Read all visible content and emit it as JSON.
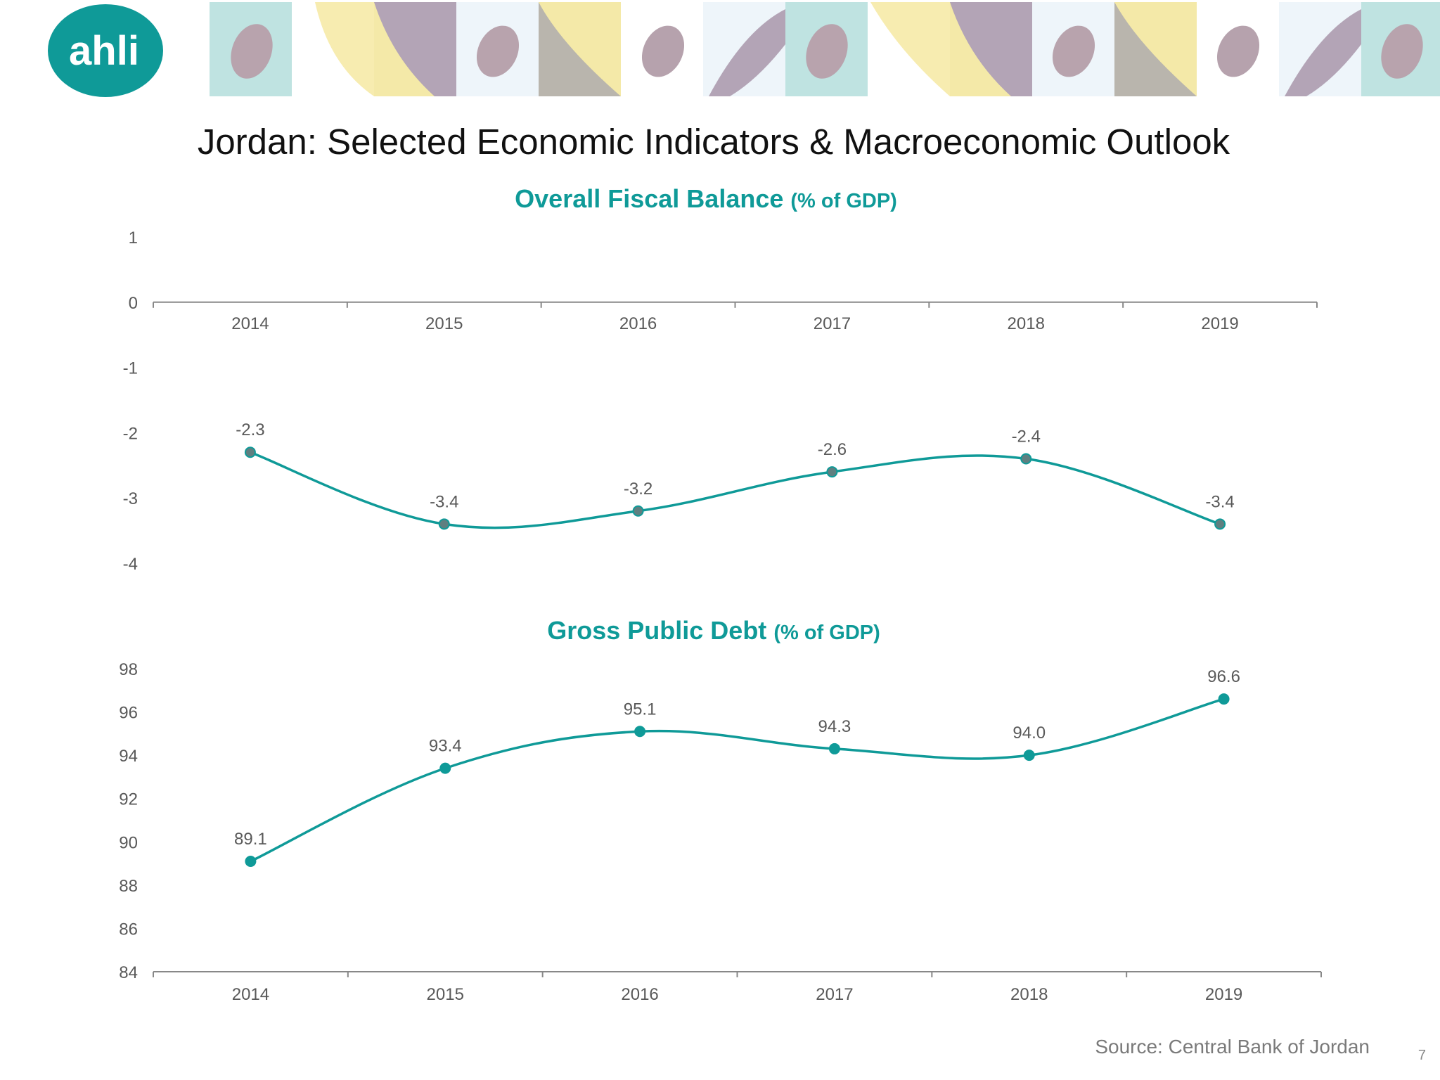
{
  "header": {
    "logo_text": "ahli",
    "title": "Jordan: Selected Economic Indicators & Macroeconomic Outlook"
  },
  "colors": {
    "brand_teal": "#0f9a98",
    "fiscal_marker": "#5f7f80",
    "axis": "#888888",
    "text": "#595959"
  },
  "chart_data": [
    {
      "type": "line",
      "title": "Overall Fiscal Balance",
      "subtitle": "(% of GDP)",
      "categories": [
        "2014",
        "2015",
        "2016",
        "2017",
        "2018",
        "2019"
      ],
      "values": [
        -2.3,
        -3.4,
        -3.2,
        -2.6,
        -2.4,
        -3.4
      ],
      "data_labels": [
        "-2.3",
        "-3.4",
        "-3.2",
        "-2.6",
        "-2.4",
        "-3.4"
      ],
      "ylim": [
        -4,
        1
      ],
      "yticks": [
        1,
        0,
        -1,
        -2,
        -3,
        -4
      ],
      "xaxis_at": 0,
      "grid": false,
      "smooth": true
    },
    {
      "type": "line",
      "title": "Gross Public Debt",
      "subtitle": "(% of GDP)",
      "categories": [
        "2014",
        "2015",
        "2016",
        "2017",
        "2018",
        "2019"
      ],
      "values": [
        89.1,
        93.4,
        95.1,
        94.3,
        94.0,
        96.6
      ],
      "data_labels": [
        "89.1",
        "93.4",
        "95.1",
        "94.3",
        "94.0",
        "96.6"
      ],
      "ylim": [
        84,
        98
      ],
      "yticks": [
        98,
        96,
        94,
        92,
        90,
        88,
        86,
        84
      ],
      "xaxis_at": 84,
      "grid": false,
      "smooth": true
    }
  ],
  "footer": {
    "source": "Source: Central Bank of Jordan",
    "page_number": "7"
  }
}
